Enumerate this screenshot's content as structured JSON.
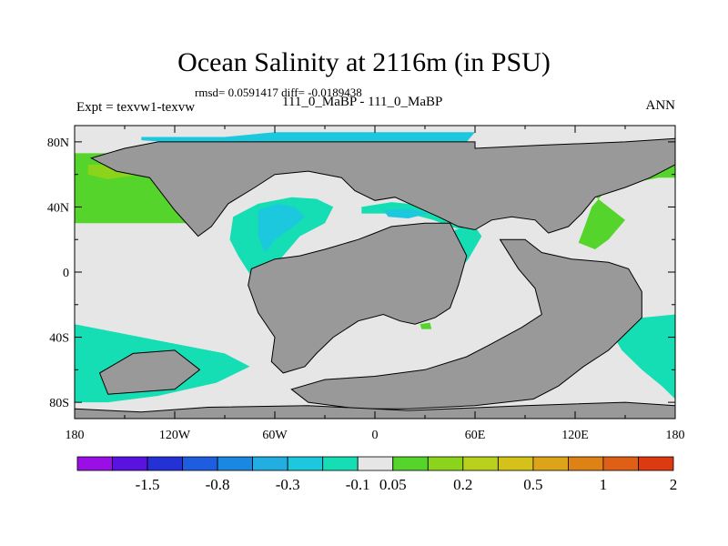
{
  "title": "Ocean Salinity at 2116m (in PSU)",
  "stats_line": "rmsd= 0.0591417 diff= -0.0189438",
  "left_label": "Expt = texvw1-texvw",
  "center_label": "111_0_MaBP - 111_0_MaBP",
  "right_label": "ANN",
  "colors": {
    "land": "#999999",
    "zero_band": "#e6e6e6",
    "cyan": "#1cc8de",
    "teal": "#15deb4",
    "green": "#55d42b",
    "lime": "#8cd41c",
    "coast": "#000000"
  },
  "chart_data": {
    "type": "map",
    "variable": "Ocean Salinity difference",
    "units": "PSU",
    "depth": "2116m",
    "xlim": [
      -180,
      180
    ],
    "ylim": [
      -90,
      90
    ],
    "x_ticks": [
      -180,
      -120,
      -60,
      0,
      60,
      120,
      180
    ],
    "x_tick_labels": [
      "180",
      "120W",
      "60W",
      "0",
      "60E",
      "120E",
      "180"
    ],
    "y_ticks": [
      80,
      40,
      0,
      -40,
      -80
    ],
    "y_tick_labels": [
      "80N",
      "40N",
      "0",
      "40S",
      "80S"
    ],
    "colorbar": {
      "colors": [
        "#9a0fe6",
        "#5a12e0",
        "#2431d6",
        "#1e5de0",
        "#1a88e0",
        "#22aee0",
        "#1cc8de",
        "#15deb4",
        "#e6e6e6",
        "#55d42b",
        "#8cd41c",
        "#b9d11c",
        "#d4c21a",
        "#dda41a",
        "#de8216",
        "#e05f17",
        "#de3a12"
      ],
      "labels": [
        "-1.5",
        "-0.8",
        "-0.3",
        "-0.1",
        "0.05",
        "0.2",
        "0.5",
        "1",
        "2"
      ],
      "label_after_box": [
        1,
        3,
        5,
        7,
        8,
        10,
        12,
        14,
        16
      ]
    },
    "regions": [
      {
        "name": "north-pacific-positive",
        "category": "green",
        "polygon": [
          [
            -180,
            73
          ],
          [
            -150,
            73
          ],
          [
            -130,
            62
          ],
          [
            -110,
            52
          ],
          [
            -98,
            46
          ],
          [
            -95,
            36
          ],
          [
            -108,
            30
          ],
          [
            -140,
            30
          ],
          [
            -175,
            30
          ],
          [
            -180,
            30
          ]
        ]
      },
      {
        "name": "north-pacific-lime-patch",
        "category": "lime",
        "polygon": [
          [
            -172,
            66
          ],
          [
            -150,
            66
          ],
          [
            -140,
            60
          ],
          [
            -160,
            57
          ],
          [
            -172,
            60
          ]
        ]
      },
      {
        "name": "arctic-negative",
        "category": "cyan",
        "polygon": [
          [
            -140,
            83
          ],
          [
            -90,
            83
          ],
          [
            -60,
            86
          ],
          [
            0,
            86
          ],
          [
            45,
            86
          ],
          [
            60,
            86
          ],
          [
            55,
            80
          ],
          [
            10,
            78
          ],
          [
            -40,
            78
          ],
          [
            -80,
            78
          ],
          [
            -110,
            79
          ],
          [
            -140,
            81
          ]
        ]
      },
      {
        "name": "atlantic-low-lat-negative",
        "category": "teal",
        "polygon": [
          [
            -85,
            34
          ],
          [
            -70,
            42
          ],
          [
            -50,
            46
          ],
          [
            -35,
            45
          ],
          [
            -25,
            40
          ],
          [
            -30,
            30
          ],
          [
            -45,
            22
          ],
          [
            -55,
            10
          ],
          [
            -62,
            2
          ],
          [
            -68,
            -8
          ],
          [
            -62,
            -16
          ],
          [
            -72,
            -6
          ],
          [
            -82,
            10
          ],
          [
            -87,
            20
          ]
        ]
      },
      {
        "name": "atlantic-core-negative",
        "category": "cyan",
        "polygon": [
          [
            -70,
            38
          ],
          [
            -58,
            42
          ],
          [
            -48,
            40
          ],
          [
            -42,
            34
          ],
          [
            -50,
            27
          ],
          [
            -60,
            20
          ],
          [
            -66,
            12
          ],
          [
            -70,
            22
          ]
        ]
      },
      {
        "name": "mediterranean-negative",
        "category": "teal",
        "polygon": [
          [
            -8,
            40
          ],
          [
            10,
            43
          ],
          [
            20,
            42
          ],
          [
            35,
            38
          ],
          [
            50,
            36
          ],
          [
            62,
            32
          ],
          [
            56,
            25
          ],
          [
            45,
            28
          ],
          [
            35,
            32
          ],
          [
            20,
            36
          ],
          [
            5,
            36
          ],
          [
            -8,
            36
          ]
        ]
      },
      {
        "name": "mediterranean-core-negative",
        "category": "cyan",
        "polygon": [
          [
            5,
            38
          ],
          [
            20,
            39
          ],
          [
            32,
            36
          ],
          [
            20,
            33
          ],
          [
            8,
            34
          ]
        ]
      },
      {
        "name": "arabian-sea-negative",
        "category": "teal",
        "polygon": [
          [
            48,
            26
          ],
          [
            60,
            28
          ],
          [
            64,
            22
          ],
          [
            56,
            8
          ],
          [
            48,
            -2
          ],
          [
            42,
            -10
          ],
          [
            40,
            -6
          ],
          [
            46,
            10
          ]
        ]
      },
      {
        "name": "northwest-pacific-positive",
        "category": "green",
        "polygon": [
          [
            130,
            48
          ],
          [
            150,
            54
          ],
          [
            170,
            58
          ],
          [
            180,
            58
          ],
          [
            180,
            66
          ],
          [
            160,
            62
          ],
          [
            140,
            52
          ],
          [
            130,
            40
          ],
          [
            125,
            26
          ],
          [
            122,
            18
          ],
          [
            132,
            14
          ],
          [
            140,
            20
          ],
          [
            150,
            32
          ]
        ]
      },
      {
        "name": "southern-pacific-negative",
        "category": "teal",
        "polygon": [
          [
            -180,
            -32
          ],
          [
            -150,
            -38
          ],
          [
            -120,
            -44
          ],
          [
            -90,
            -50
          ],
          [
            -75,
            -58
          ],
          [
            -95,
            -68
          ],
          [
            -130,
            -76
          ],
          [
            -160,
            -80
          ],
          [
            -180,
            -80
          ]
        ]
      },
      {
        "name": "southwest-pacific-negative",
        "category": "teal",
        "polygon": [
          [
            140,
            -34
          ],
          [
            160,
            -28
          ],
          [
            180,
            -26
          ],
          [
            180,
            -78
          ],
          [
            172,
            -70
          ],
          [
            160,
            -60
          ],
          [
            148,
            -48
          ]
        ]
      },
      {
        "name": "south-atlantic-green-spot",
        "category": "green",
        "polygon": [
          [
            27,
            -32
          ],
          [
            33,
            -31
          ],
          [
            34,
            -35
          ],
          [
            28,
            -35
          ]
        ]
      },
      {
        "name": "tasman-green-spot",
        "category": "green",
        "polygon": [
          [
            130,
            -31
          ],
          [
            137,
            -32
          ],
          [
            138,
            -37
          ],
          [
            131,
            -36
          ]
        ]
      }
    ],
    "land": [
      {
        "name": "north-america-asia",
        "polygon": [
          [
            -130,
            80
          ],
          [
            -60,
            80
          ],
          [
            0,
            80
          ],
          [
            60,
            80
          ],
          [
            60,
            76
          ],
          [
            100,
            78
          ],
          [
            150,
            80
          ],
          [
            180,
            82
          ],
          [
            180,
            66
          ],
          [
            165,
            58
          ],
          [
            150,
            52
          ],
          [
            132,
            46
          ],
          [
            124,
            36
          ],
          [
            116,
            28
          ],
          [
            104,
            24
          ],
          [
            96,
            32
          ],
          [
            82,
            34
          ],
          [
            70,
            32
          ],
          [
            60,
            26
          ],
          [
            50,
            28
          ],
          [
            38,
            34
          ],
          [
            25,
            40
          ],
          [
            12,
            46
          ],
          [
            0,
            44
          ],
          [
            -12,
            50
          ],
          [
            -20,
            58
          ],
          [
            -40,
            62
          ],
          [
            -60,
            60
          ],
          [
            -72,
            52
          ],
          [
            -88,
            42
          ],
          [
            -98,
            28
          ],
          [
            -106,
            22
          ],
          [
            -120,
            38
          ],
          [
            -135,
            58
          ],
          [
            -155,
            62
          ],
          [
            -170,
            70
          ],
          [
            -150,
            76
          ]
        ]
      },
      {
        "name": "south-america-africa",
        "polygon": [
          [
            -60,
            8
          ],
          [
            -45,
            10
          ],
          [
            -30,
            14
          ],
          [
            -10,
            20
          ],
          [
            0,
            24
          ],
          [
            10,
            28
          ],
          [
            30,
            30
          ],
          [
            45,
            30
          ],
          [
            50,
            20
          ],
          [
            55,
            10
          ],
          [
            50,
            -8
          ],
          [
            45,
            -22
          ],
          [
            36,
            -28
          ],
          [
            24,
            -32
          ],
          [
            15,
            -30
          ],
          [
            5,
            -26
          ],
          [
            -10,
            -30
          ],
          [
            -25,
            -40
          ],
          [
            -35,
            -50
          ],
          [
            -42,
            -58
          ],
          [
            -55,
            -62
          ],
          [
            -62,
            -55
          ],
          [
            -60,
            -40
          ],
          [
            -70,
            -25
          ],
          [
            -76,
            -8
          ],
          [
            -74,
            2
          ]
        ]
      },
      {
        "name": "india-australia-antarctic",
        "polygon": [
          [
            75,
            20
          ],
          [
            90,
            20
          ],
          [
            100,
            12
          ],
          [
            118,
            8
          ],
          [
            140,
            6
          ],
          [
            152,
            2
          ],
          [
            160,
            -12
          ],
          [
            160,
            -28
          ],
          [
            150,
            -38
          ],
          [
            140,
            -48
          ],
          [
            125,
            -58
          ],
          [
            110,
            -70
          ],
          [
            95,
            -78
          ],
          [
            60,
            -82
          ],
          [
            20,
            -84
          ],
          [
            -10,
            -84
          ],
          [
            -40,
            -80
          ],
          [
            -50,
            -72
          ],
          [
            -30,
            -66
          ],
          [
            0,
            -64
          ],
          [
            30,
            -60
          ],
          [
            55,
            -52
          ],
          [
            70,
            -44
          ],
          [
            88,
            -34
          ],
          [
            100,
            -26
          ],
          [
            96,
            -10
          ],
          [
            86,
            2
          ]
        ]
      },
      {
        "name": "polar-strip",
        "polygon": [
          [
            -100,
            -83
          ],
          [
            -40,
            -82
          ],
          [
            20,
            -85
          ],
          [
            90,
            -82
          ],
          [
            150,
            -80
          ],
          [
            180,
            -82
          ],
          [
            180,
            -90
          ],
          [
            -180,
            -90
          ],
          [
            -180,
            -84
          ],
          [
            -140,
            -86
          ]
        ]
      },
      {
        "name": "pacific-island-block",
        "polygon": [
          [
            -160,
            -75
          ],
          [
            -120,
            -72
          ],
          [
            -105,
            -60
          ],
          [
            -120,
            -48
          ],
          [
            -145,
            -50
          ],
          [
            -165,
            -62
          ]
        ]
      }
    ]
  }
}
